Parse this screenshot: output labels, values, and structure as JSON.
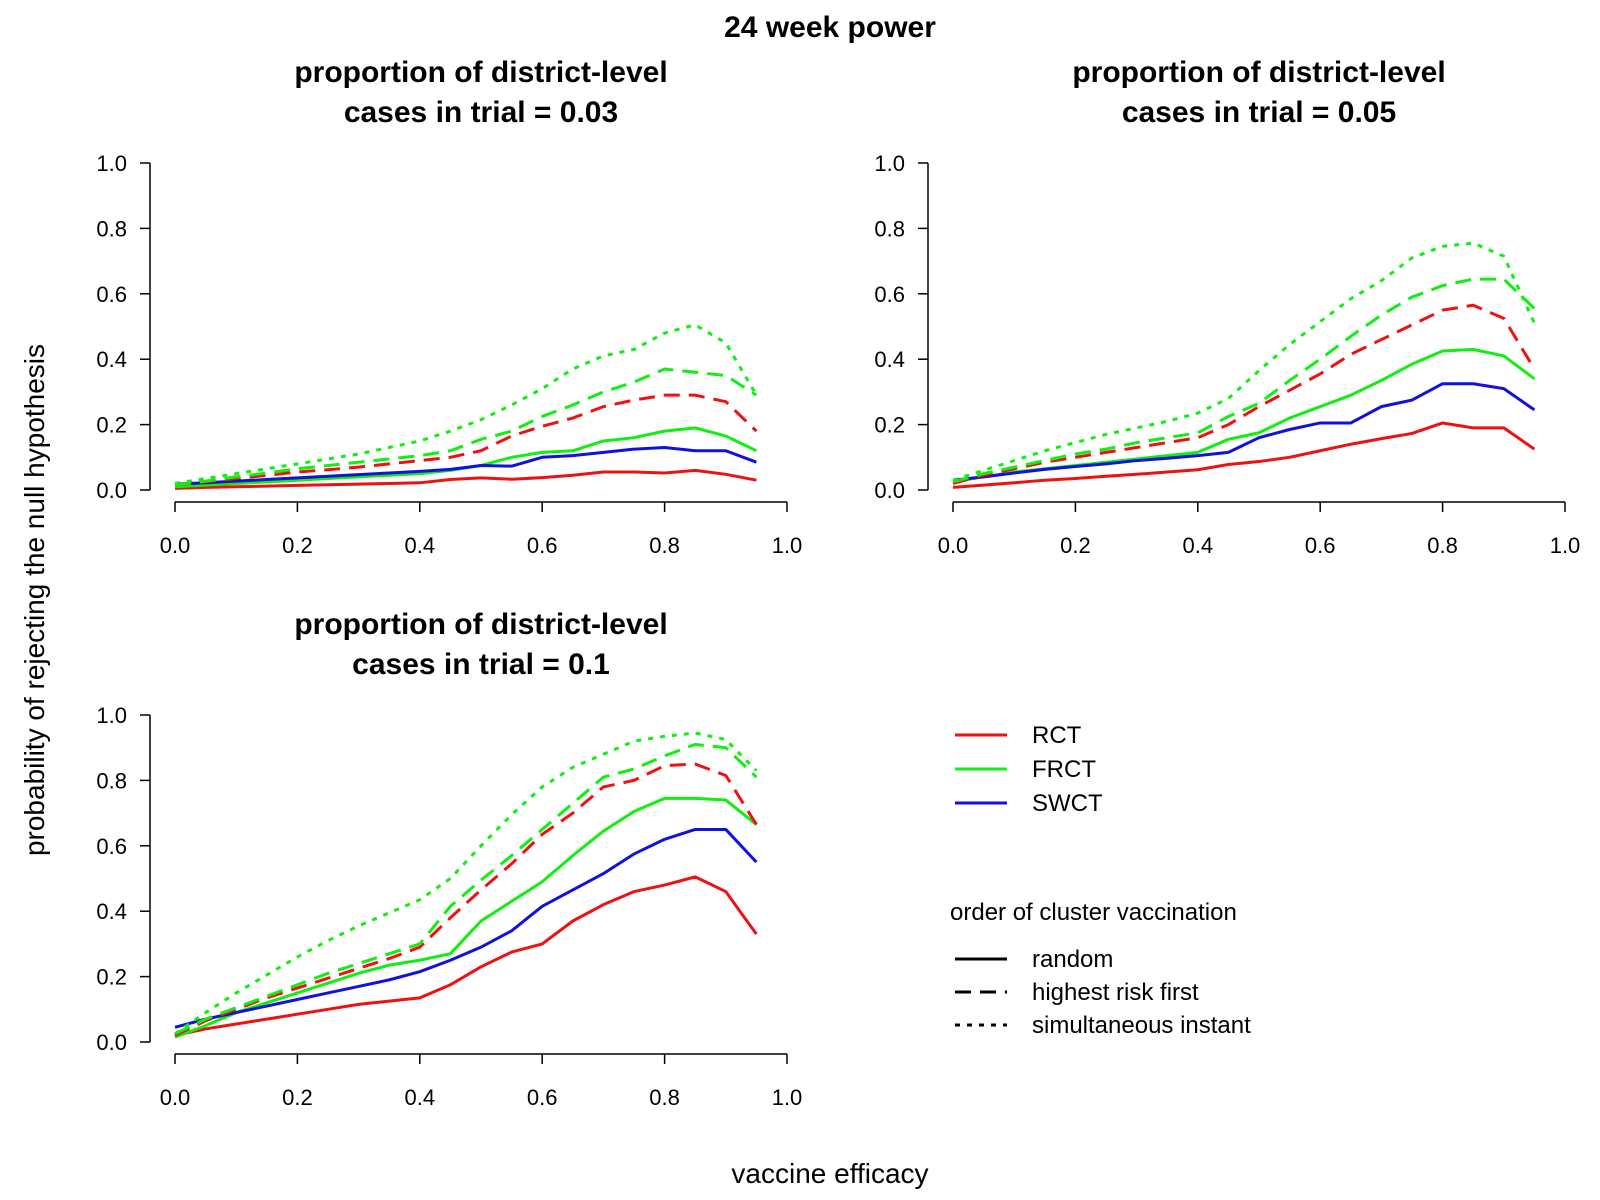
{
  "figure": {
    "title": "24 week power",
    "ylabel": "probability of rejecting the null hypothesis",
    "xlabel": "vaccine efficacy"
  },
  "legend": {
    "designs": [
      {
        "label": "RCT",
        "color": "#ee1111"
      },
      {
        "label": "FRCT",
        "color": "#11ee11"
      },
      {
        "label": "SWCT",
        "color": "#1111dd"
      }
    ],
    "order_title": "order of cluster vaccination",
    "orders": [
      {
        "label": "random",
        "style": "solid"
      },
      {
        "label": "highest risk first",
        "style": "dashed"
      },
      {
        "label": "simultaneous instant",
        "style": "dotted"
      }
    ]
  },
  "colors": {
    "RCT": "#ee1111",
    "FRCT": "#11ee11",
    "SWCT": "#1111dd"
  },
  "chart_data": [
    {
      "type": "line",
      "title_lines": [
        "proportion of district-level",
        "cases in trial = 0.03"
      ],
      "xlim": [
        0,
        1
      ],
      "ylim": [
        0,
        1
      ],
      "xticks": [
        "0.0",
        "0.2",
        "0.4",
        "0.6",
        "0.8",
        "1.0"
      ],
      "yticks": [
        "0.0",
        "0.2",
        "0.4",
        "0.6",
        "0.8",
        "1.0"
      ],
      "x": [
        0,
        0.05,
        0.1,
        0.15,
        0.2,
        0.25,
        0.3,
        0.35,
        0.4,
        0.45,
        0.5,
        0.55,
        0.6,
        0.65,
        0.7,
        0.75,
        0.8,
        0.85,
        0.9,
        0.95
      ],
      "series": [
        {
          "design": "RCT",
          "order": "random",
          "values": [
            0.005,
            0.008,
            0.01,
            0.012,
            0.014,
            0.016,
            0.018,
            0.02,
            0.022,
            0.032,
            0.037,
            0.033,
            0.038,
            0.045,
            0.055,
            0.055,
            0.052,
            0.06,
            0.048,
            0.03
          ]
        },
        {
          "design": "FRCT",
          "order": "random",
          "values": [
            0.01,
            0.015,
            0.02,
            0.025,
            0.03,
            0.035,
            0.04,
            0.045,
            0.05,
            0.06,
            0.075,
            0.1,
            0.115,
            0.12,
            0.15,
            0.16,
            0.18,
            0.19,
            0.165,
            0.12
          ]
        },
        {
          "design": "SWCT",
          "order": "random",
          "values": [
            0.018,
            0.022,
            0.027,
            0.032,
            0.037,
            0.042,
            0.047,
            0.052,
            0.057,
            0.063,
            0.075,
            0.073,
            0.1,
            0.105,
            0.115,
            0.125,
            0.13,
            0.12,
            0.12,
            0.085
          ]
        },
        {
          "design": "RCT",
          "order": "highest risk first",
          "values": [
            0.015,
            0.025,
            0.035,
            0.045,
            0.055,
            0.062,
            0.07,
            0.08,
            0.09,
            0.1,
            0.12,
            0.165,
            0.195,
            0.22,
            0.255,
            0.275,
            0.29,
            0.29,
            0.27,
            0.18
          ]
        },
        {
          "design": "FRCT",
          "order": "highest risk first",
          "values": [
            0.015,
            0.027,
            0.04,
            0.052,
            0.065,
            0.075,
            0.085,
            0.095,
            0.105,
            0.12,
            0.155,
            0.18,
            0.225,
            0.26,
            0.3,
            0.33,
            0.37,
            0.36,
            0.35,
            0.29
          ]
        },
        {
          "design": "FRCT",
          "order": "simultaneous instant",
          "values": [
            0.02,
            0.035,
            0.05,
            0.065,
            0.08,
            0.095,
            0.11,
            0.13,
            0.15,
            0.18,
            0.215,
            0.26,
            0.31,
            0.37,
            0.41,
            0.43,
            0.48,
            0.505,
            0.45,
            0.29
          ]
        }
      ]
    },
    {
      "type": "line",
      "title_lines": [
        "proportion of district-level",
        "cases in trial = 0.05"
      ],
      "xlim": [
        0,
        1
      ],
      "ylim": [
        0,
        1
      ],
      "xticks": [
        "0.0",
        "0.2",
        "0.4",
        "0.6",
        "0.8",
        "1.0"
      ],
      "yticks": [
        "0.0",
        "0.2",
        "0.4",
        "0.6",
        "0.8",
        "1.0"
      ],
      "x": [
        0,
        0.05,
        0.1,
        0.15,
        0.2,
        0.25,
        0.3,
        0.35,
        0.4,
        0.45,
        0.5,
        0.55,
        0.6,
        0.65,
        0.7,
        0.75,
        0.8,
        0.85,
        0.9,
        0.95
      ],
      "series": [
        {
          "design": "RCT",
          "order": "random",
          "values": [
            0.008,
            0.015,
            0.022,
            0.03,
            0.035,
            0.042,
            0.048,
            0.055,
            0.062,
            0.078,
            0.087,
            0.1,
            0.12,
            0.14,
            0.157,
            0.173,
            0.205,
            0.19,
            0.19,
            0.125
          ]
        },
        {
          "design": "FRCT",
          "order": "random",
          "values": [
            0.025,
            0.04,
            0.055,
            0.065,
            0.075,
            0.085,
            0.095,
            0.105,
            0.115,
            0.155,
            0.175,
            0.22,
            0.255,
            0.29,
            0.335,
            0.385,
            0.425,
            0.43,
            0.41,
            0.34
          ]
        },
        {
          "design": "SWCT",
          "order": "random",
          "values": [
            0.03,
            0.04,
            0.052,
            0.063,
            0.072,
            0.08,
            0.09,
            0.097,
            0.105,
            0.115,
            0.16,
            0.185,
            0.205,
            0.205,
            0.255,
            0.275,
            0.325,
            0.325,
            0.31,
            0.245
          ]
        },
        {
          "design": "RCT",
          "order": "highest risk first",
          "values": [
            0.02,
            0.045,
            0.065,
            0.085,
            0.1,
            0.115,
            0.13,
            0.145,
            0.16,
            0.2,
            0.255,
            0.305,
            0.355,
            0.415,
            0.46,
            0.505,
            0.55,
            0.565,
            0.525,
            0.37
          ]
        },
        {
          "design": "FRCT",
          "order": "highest risk first",
          "values": [
            0.025,
            0.05,
            0.07,
            0.09,
            0.11,
            0.125,
            0.145,
            0.16,
            0.175,
            0.225,
            0.265,
            0.335,
            0.4,
            0.47,
            0.535,
            0.59,
            0.625,
            0.645,
            0.645,
            0.555
          ]
        },
        {
          "design": "FRCT",
          "order": "simultaneous instant",
          "values": [
            0.03,
            0.06,
            0.09,
            0.12,
            0.145,
            0.17,
            0.19,
            0.21,
            0.235,
            0.28,
            0.365,
            0.445,
            0.515,
            0.585,
            0.64,
            0.71,
            0.745,
            0.755,
            0.715,
            0.51
          ]
        }
      ]
    },
    {
      "type": "line",
      "title_lines": [
        "proportion of district-level",
        "cases in trial = 0.1"
      ],
      "xlim": [
        0,
        1
      ],
      "ylim": [
        0,
        1
      ],
      "xticks": [
        "0.0",
        "0.2",
        "0.4",
        "0.6",
        "0.8",
        "1.0"
      ],
      "yticks": [
        "0.0",
        "0.2",
        "0.4",
        "0.6",
        "0.8",
        "1.0"
      ],
      "x": [
        0,
        0.05,
        0.1,
        0.15,
        0.2,
        0.25,
        0.3,
        0.35,
        0.4,
        0.45,
        0.5,
        0.55,
        0.6,
        0.65,
        0.7,
        0.75,
        0.8,
        0.85,
        0.9,
        0.95
      ],
      "series": [
        {
          "design": "RCT",
          "order": "random",
          "values": [
            0.02,
            0.04,
            0.055,
            0.07,
            0.085,
            0.1,
            0.115,
            0.125,
            0.135,
            0.175,
            0.23,
            0.275,
            0.3,
            0.37,
            0.42,
            0.46,
            0.48,
            0.505,
            0.46,
            0.33
          ]
        },
        {
          "design": "FRCT",
          "order": "random",
          "values": [
            0.015,
            0.05,
            0.09,
            0.12,
            0.15,
            0.18,
            0.21,
            0.235,
            0.25,
            0.27,
            0.37,
            0.43,
            0.49,
            0.57,
            0.645,
            0.705,
            0.745,
            0.745,
            0.74,
            0.665
          ]
        },
        {
          "design": "SWCT",
          "order": "random",
          "values": [
            0.045,
            0.07,
            0.09,
            0.11,
            0.13,
            0.15,
            0.17,
            0.19,
            0.215,
            0.25,
            0.29,
            0.34,
            0.415,
            0.465,
            0.515,
            0.575,
            0.62,
            0.65,
            0.65,
            0.55
          ]
        },
        {
          "design": "RCT",
          "order": "highest risk first",
          "values": [
            0.02,
            0.065,
            0.1,
            0.135,
            0.165,
            0.195,
            0.225,
            0.255,
            0.29,
            0.38,
            0.465,
            0.545,
            0.635,
            0.7,
            0.78,
            0.8,
            0.845,
            0.85,
            0.815,
            0.665
          ]
        },
        {
          "design": "FRCT",
          "order": "highest risk first",
          "values": [
            0.025,
            0.07,
            0.105,
            0.14,
            0.175,
            0.21,
            0.24,
            0.27,
            0.3,
            0.415,
            0.495,
            0.57,
            0.65,
            0.73,
            0.81,
            0.835,
            0.875,
            0.91,
            0.9,
            0.81
          ]
        },
        {
          "design": "FRCT",
          "order": "simultaneous instant",
          "values": [
            0.025,
            0.09,
            0.15,
            0.205,
            0.26,
            0.31,
            0.355,
            0.395,
            0.435,
            0.5,
            0.6,
            0.695,
            0.78,
            0.84,
            0.88,
            0.92,
            0.935,
            0.945,
            0.925,
            0.83
          ]
        }
      ]
    }
  ]
}
